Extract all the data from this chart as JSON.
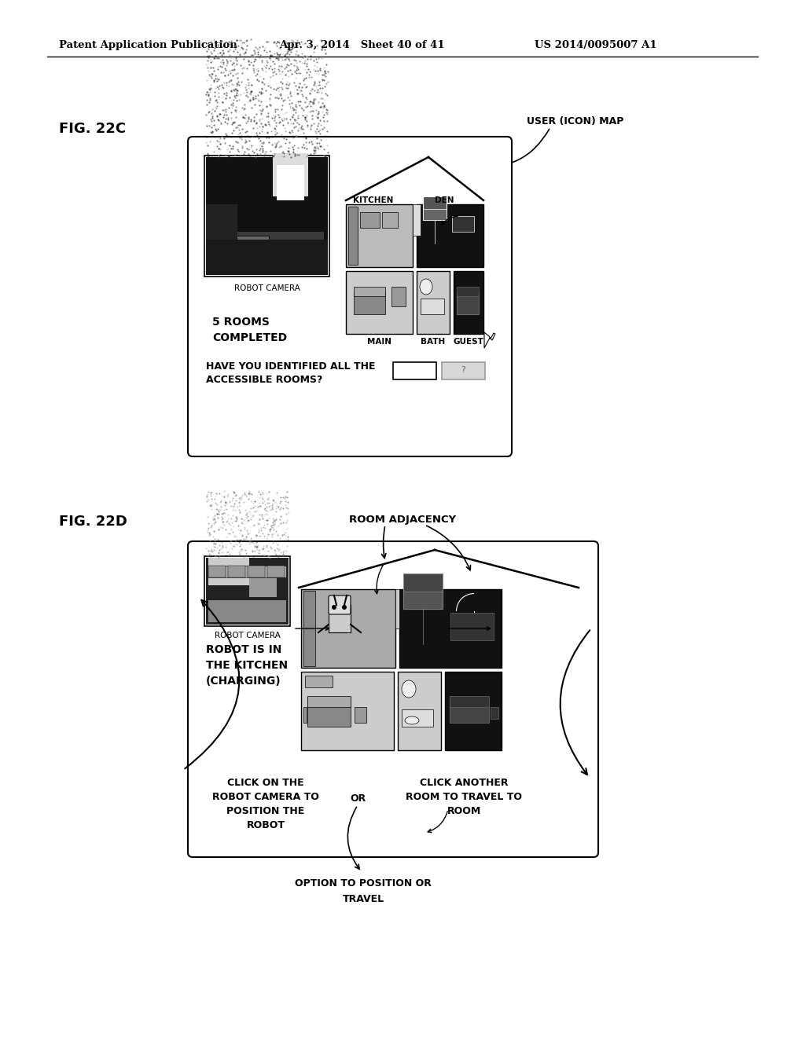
{
  "bg_color": "#ffffff",
  "header_left": "Patent Application Publication",
  "header_mid": "Apr. 3, 2014   Sheet 40 of 41",
  "header_right": "US 2014/0095007 A1",
  "fig22c_label": "FIG. 22C",
  "fig22d_label": "FIG. 22D",
  "user_icon_map_label": "USER (ICON) MAP",
  "room_adjacency_label": "ROOM ADJACENCY",
  "robot_camera_label": "ROBOT CAMERA",
  "five_rooms": "5 ROOMS\nCOMPLETED",
  "have_you_line1": "HAVE YOU IDENTIFIED ALL THE",
  "have_you_line2": "ACCESSIBLE ROOMS?",
  "robot_in_kitchen_line1": "ROBOT IS IN",
  "robot_in_kitchen_line2": "THE KITCHEN",
  "robot_in_kitchen_line3": "(CHARGING)",
  "click_robot_line1": "CLICK ON THE",
  "click_robot_line2": "ROBOT CAMERA TO",
  "click_robot_line3": "POSITION THE",
  "click_robot_line4": "ROBOT",
  "or_label": "OR",
  "click_room_line1": "CLICK ANOTHER",
  "click_room_line2": "ROOM TO TRAVEL TO",
  "click_room_line3": "ROOM",
  "option_label_line1": "OPTION TO POSITION OR",
  "option_label_line2": "TRAVEL",
  "kitchen_label": "KITCHEN",
  "den_label": "DEN",
  "main_label": "MAIN",
  "bath_label": "BATH",
  "guest_label": "GUEST"
}
